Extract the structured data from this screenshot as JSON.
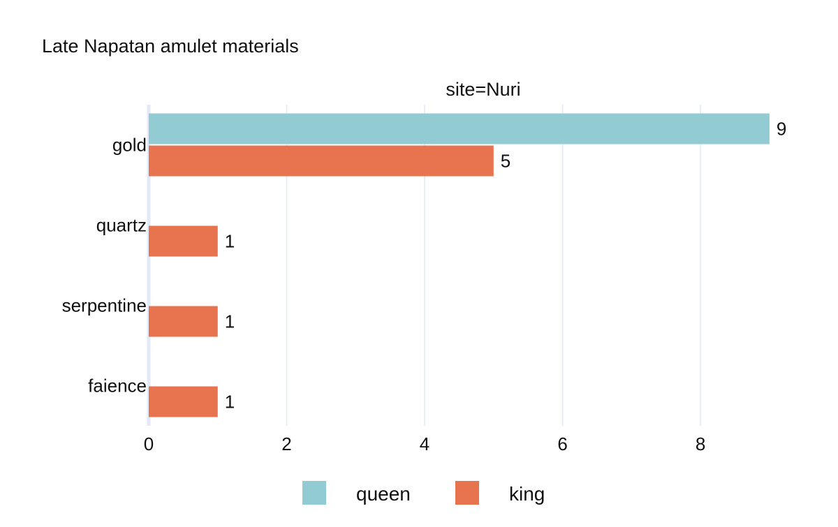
{
  "chart_data": {
    "type": "bar",
    "orientation": "horizontal",
    "title": "Late Napatan amulet materials",
    "facet_label": "site=Nuri",
    "categories": [
      "gold",
      "quartz",
      "serpentine",
      "faience"
    ],
    "series": [
      {
        "name": "queen",
        "color": "#93cbd2",
        "values": [
          9,
          null,
          null,
          null
        ]
      },
      {
        "name": "king",
        "color": "#e8734f",
        "values": [
          5,
          1,
          1,
          1
        ]
      }
    ],
    "x_ticks": [
      0,
      2,
      4,
      6,
      8
    ],
    "xlim": [
      0,
      9.2
    ],
    "xlabel": "",
    "ylabel": "",
    "grid": true,
    "legend_position": "bottom-center"
  }
}
